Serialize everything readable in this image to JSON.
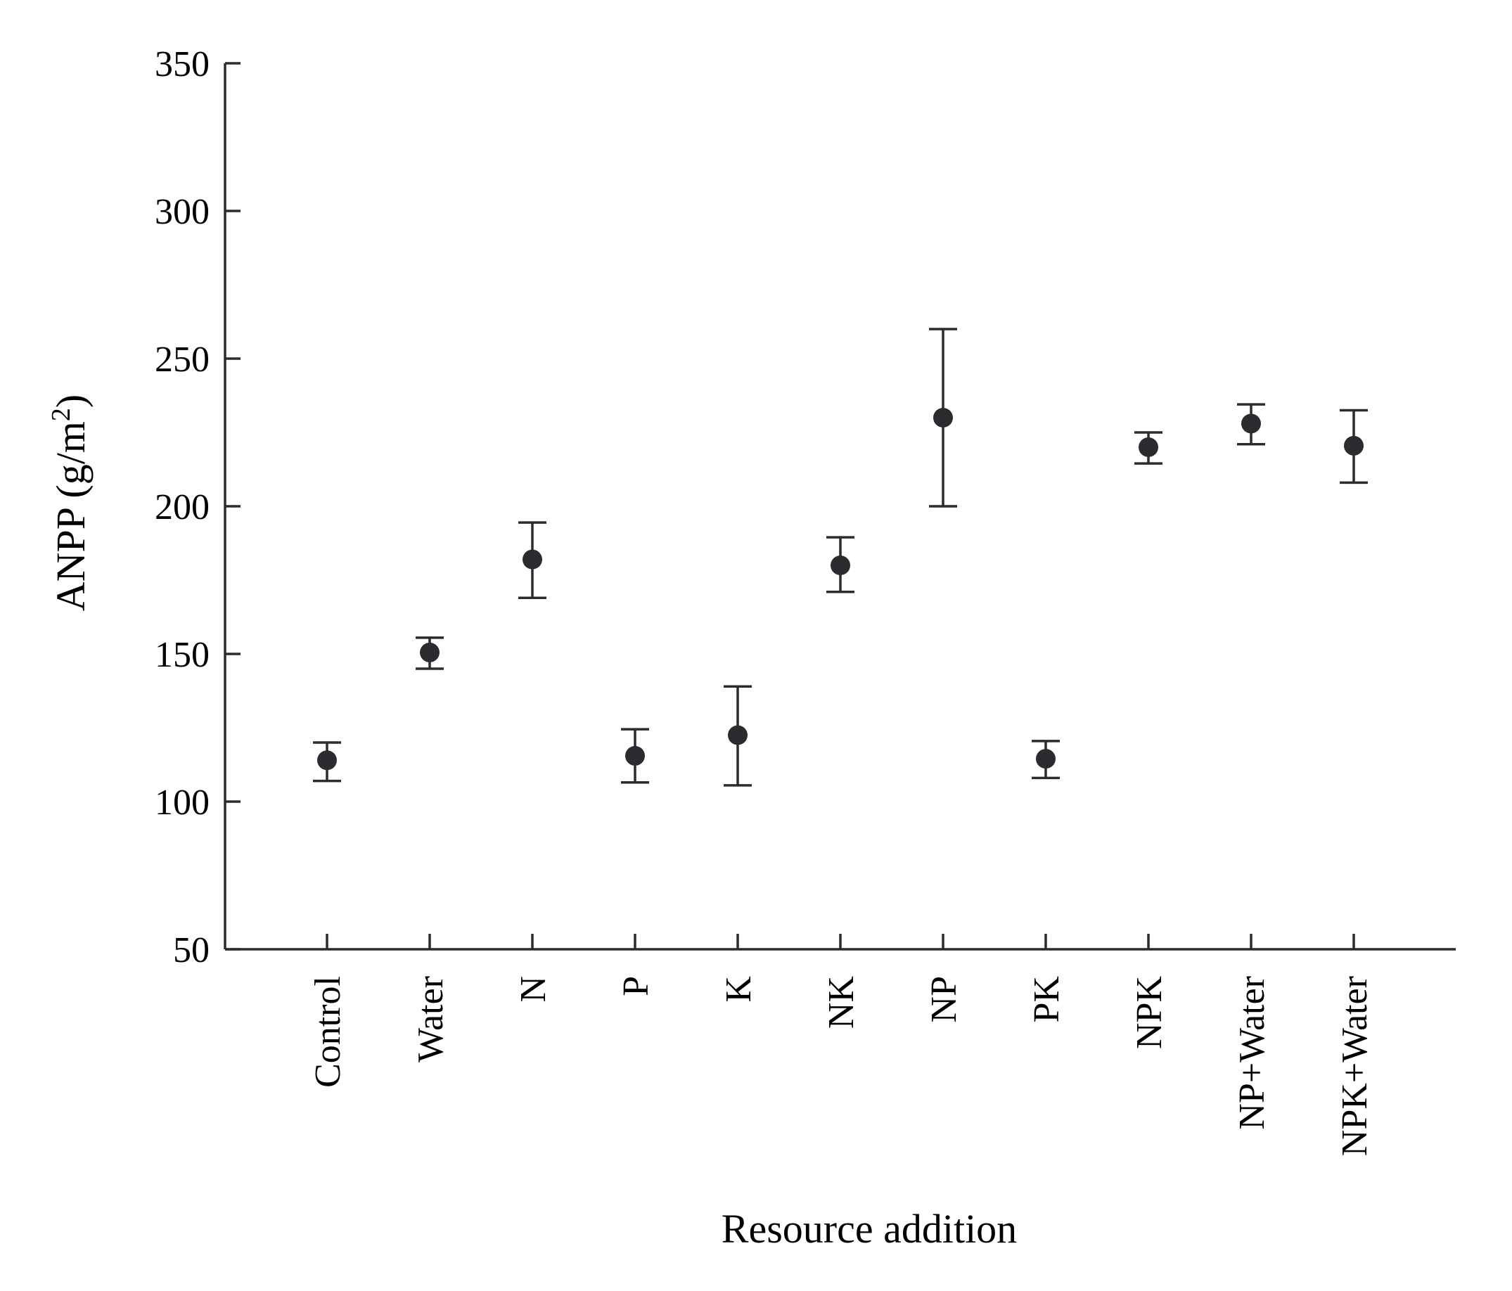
{
  "chart_data": {
    "type": "scatter",
    "title": "",
    "xlabel": "Resource addition",
    "ylabel": "ANPP (g/m",
    "ylabel_superscript": "2",
    "ylabel_close": ")",
    "categories": [
      "Control",
      "Water",
      "N",
      "P",
      "K",
      "NK",
      "NP",
      "PK",
      "NPK",
      "NP+Water",
      "NPK+Water"
    ],
    "series": [
      {
        "values": [
          114,
          150.5,
          182,
          115.5,
          122.5,
          180,
          230,
          114.5,
          220,
          228,
          220.5
        ],
        "error_low": [
          107,
          145,
          169,
          106.5,
          105.5,
          171,
          200,
          108,
          214.5,
          221,
          208
        ],
        "error_high": [
          120,
          155.5,
          194.5,
          124.5,
          139,
          189.5,
          260,
          120.5,
          225,
          234.5,
          232.5
        ]
      }
    ],
    "ylim": [
      50,
      350
    ],
    "yticks": [
      50,
      100,
      150,
      200,
      250,
      300,
      350
    ],
    "grid": false,
    "legend": "none",
    "colors": {
      "marker": "#2b2b30",
      "axis": "#2b2b30"
    }
  }
}
